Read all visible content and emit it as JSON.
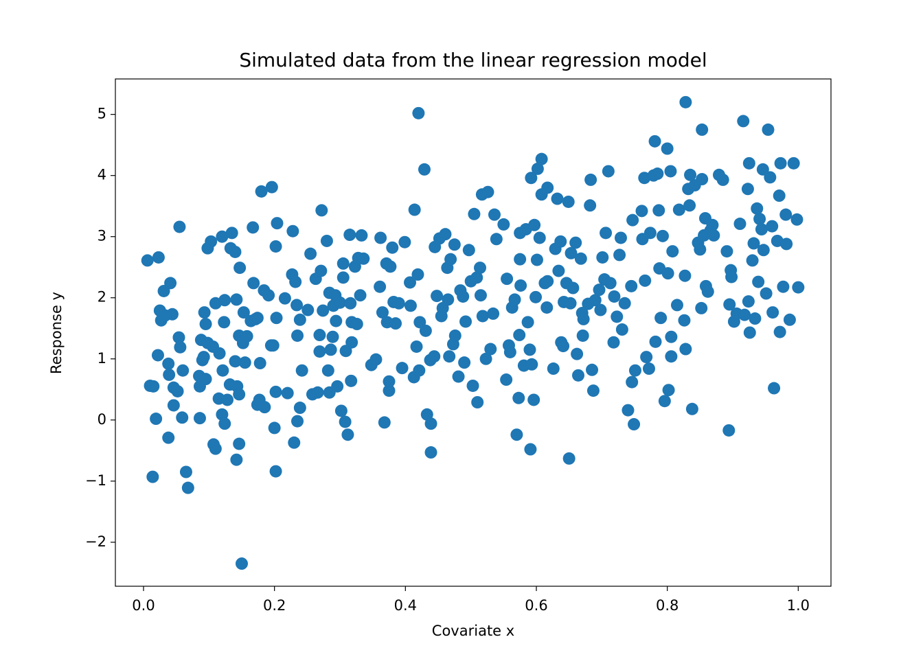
{
  "chart_data": {
    "type": "scatter",
    "title": "Simulated data from the linear regression model",
    "x_label": "Covariate x",
    "y_label": "Response y",
    "color": "#1f77b4",
    "xlim": [
      -0.043,
      1.05
    ],
    "ylim": [
      -2.72,
      5.58
    ],
    "xticks": [
      {
        "value": 0,
        "label": "0.0"
      },
      {
        "value": 0.2,
        "label": "0.2"
      },
      {
        "value": 0.4,
        "label": "0.4"
      },
      {
        "value": 0.6,
        "label": "0.6"
      },
      {
        "value": 0.8,
        "label": "0.8"
      },
      {
        "value": 1,
        "label": "1.0"
      }
    ],
    "yticks": [
      {
        "value": -2,
        "label": "−2"
      },
      {
        "value": -1,
        "label": "−1"
      },
      0,
      1,
      2,
      3,
      4,
      5
    ],
    "x": [
      0.006,
      0.023,
      0.01,
      0.015,
      0.014,
      0.019,
      0.022,
      0.025,
      0.031,
      0.041,
      0.027,
      0.033,
      0.044,
      0.038,
      0.039,
      0.038,
      0.046,
      0.046,
      0.052,
      0.055,
      0.054,
      0.056,
      0.059,
      0.06,
      0.065,
      0.068,
      0.085,
      0.086,
      0.086,
      0.088,
      0.09,
      0.093,
      0.098,
      0.103,
      0.095,
      0.098,
      0.092,
      0.095,
      0.106,
      0.11,
      0.107,
      0.11,
      0.116,
      0.115,
      0.123,
      0.124,
      0.12,
      0.121,
      0.12,
      0.124,
      0.128,
      0.133,
      0.135,
      0.132,
      0.14,
      0.142,
      0.14,
      0.142,
      0.146,
      0.146,
      0.143,
      0.146,
      0.147,
      0.15,
      0.152,
      0.153,
      0.155,
      0.158,
      0.164,
      0.167,
      0.168,
      0.171,
      0.174,
      0.174,
      0.177,
      0.18,
      0.178,
      0.185,
      0.184,
      0.191,
      0.196,
      0.195,
      0.198,
      0.2,
      0.202,
      0.203,
      0.202,
      0.202,
      0.204,
      0.216,
      0.22,
      0.228,
      0.227,
      0.23,
      0.232,
      0.234,
      0.235,
      0.235,
      0.239,
      0.242,
      0.239,
      0.251,
      0.255,
      0.258,
      0.263,
      0.266,
      0.269,
      0.271,
      0.272,
      0.269,
      0.274,
      0.28,
      0.282,
      0.284,
      0.286,
      0.284,
      0.289,
      0.29,
      0.294,
      0.296,
      0.293,
      0.3,
      0.302,
      0.305,
      0.305,
      0.308,
      0.309,
      0.312,
      0.315,
      0.316,
      0.317,
      0.318,
      0.318,
      0.323,
      0.326,
      0.328,
      0.331,
      0.333,
      0.336,
      0.348,
      0.355,
      0.362,
      0.361,
      0.365,
      0.368,
      0.371,
      0.372,
      0.375,
      0.375,
      0.377,
      0.38,
      0.382,
      0.385,
      0.39,
      0.395,
      0.399,
      0.407,
      0.408,
      0.413,
      0.414,
      0.417,
      0.419,
      0.42,
      0.422,
      0.421,
      0.429,
      0.431,
      0.433,
      0.439,
      0.439,
      0.438,
      0.444,
      0.445,
      0.448,
      0.452,
      0.455,
      0.457,
      0.461,
      0.464,
      0.465,
      0.467,
      0.469,
      0.473,
      0.475,
      0.476,
      0.481,
      0.484,
      0.488,
      0.49,
      0.492,
      0.497,
      0.5,
      0.503,
      0.505,
      0.509,
      0.51,
      0.514,
      0.515,
      0.518,
      0.517,
      0.523,
      0.526,
      0.53,
      0.534,
      0.536,
      0.539,
      0.55,
      0.554,
      0.555,
      0.558,
      0.56,
      0.563,
      0.567,
      0.57,
      0.573,
      0.575,
      0.574,
      0.575,
      0.576,
      0.581,
      0.584,
      0.587,
      0.59,
      0.591,
      0.592,
      0.593,
      0.596,
      0.597,
      0.599,
      0.601,
      0.602,
      0.605,
      0.608,
      0.608,
      0.613,
      0.616,
      0.617,
      0.617,
      0.626,
      0.629,
      0.632,
      0.634,
      0.637,
      0.638,
      0.641,
      0.642,
      0.646,
      0.649,
      0.65,
      0.652,
      0.653,
      0.656,
      0.66,
      0.662,
      0.664,
      0.668,
      0.67,
      0.671,
      0.672,
      0.679,
      0.682,
      0.683,
      0.685,
      0.687,
      0.69,
      0.696,
      0.698,
      0.701,
      0.704,
      0.706,
      0.71,
      0.713,
      0.718,
      0.719,
      0.723,
      0.727,
      0.729,
      0.731,
      0.735,
      0.74,
      0.745,
      0.746,
      0.747,
      0.749,
      0.751,
      0.761,
      0.762,
      0.765,
      0.766,
      0.768,
      0.772,
      0.774,
      0.779,
      0.781,
      0.782,
      0.785,
      0.787,
      0.788,
      0.79,
      0.793,
      0.796,
      0.8,
      0.801,
      0.802,
      0.805,
      0.806,
      0.806,
      0.808,
      0.815,
      0.818,
      0.826,
      0.827,
      0.828,
      0.828,
      0.832,
      0.834,
      0.835,
      0.838,
      0.842,
      0.847,
      0.85,
      0.852,
      0.853,
      0.853,
      0.856,
      0.858,
      0.859,
      0.862,
      0.866,
      0.869,
      0.871,
      0.879,
      0.885,
      0.891,
      0.894,
      0.895,
      0.897,
      0.898,
      0.902,
      0.906,
      0.911,
      0.916,
      0.918,
      0.923,
      0.924,
      0.926,
      0.925,
      0.93,
      0.932,
      0.934,
      0.937,
      0.939,
      0.941,
      0.944,
      0.946,
      0.947,
      0.951,
      0.954,
      0.957,
      0.96,
      0.961,
      0.963,
      0.968,
      0.971,
      0.972,
      0.973,
      0.977,
      0.981,
      0.982,
      0.987,
      0.993,
      0.998,
      1.0
    ],
    "values": [
      2.61,
      2.66,
      0.56,
      0.55,
      -0.93,
      0.02,
      1.06,
      1.79,
      2.11,
      2.24,
      1.63,
      1.71,
      1.73,
      0.92,
      0.74,
      -0.29,
      0.24,
      0.53,
      0.47,
      3.16,
      1.35,
      1.19,
      0.04,
      0.81,
      -0.85,
      -1.11,
      0.72,
      0.55,
      0.03,
      1.31,
      0.98,
      1.76,
      2.81,
      2.92,
      1.57,
      1.26,
      1.03,
      0.67,
      1.2,
      1.91,
      -0.4,
      -0.47,
      1.09,
      0.35,
      1.6,
      1.96,
      3.0,
      0.81,
      0.09,
      -0.06,
      0.33,
      2.81,
      3.06,
      0.58,
      2.75,
      1.97,
      0.96,
      -0.65,
      -0.39,
      1.38,
      0.55,
      0.42,
      2.49,
      -2.35,
      1.26,
      1.76,
      0.94,
      1.37,
      1.62,
      3.15,
      2.24,
      1.65,
      1.67,
      0.25,
      0.33,
      3.74,
      0.93,
      0.21,
      2.12,
      2.04,
      3.81,
      1.22,
      1.22,
      -0.13,
      2.84,
      1.67,
      0.46,
      -0.84,
      3.22,
      1.99,
      0.44,
      3.09,
      2.38,
      -0.37,
      2.26,
      1.88,
      1.38,
      -0.02,
      0.2,
      0.81,
      1.64,
      1.8,
      2.72,
      0.42,
      2.31,
      0.45,
      1.39,
      2.44,
      3.43,
      1.12,
      1.79,
      2.93,
      0.81,
      2.08,
      1.15,
      0.45,
      1.36,
      1.87,
      1.62,
      0.55,
      2.04,
      1.92,
      0.15,
      2.33,
      2.56,
      -0.03,
      1.13,
      -0.24,
      3.03,
      1.91,
      0.64,
      1.6,
      1.27,
      2.51,
      1.57,
      2.65,
      2.04,
      3.02,
      2.64,
      0.9,
      0.99,
      2.98,
      2.18,
      1.76,
      -0.04,
      2.56,
      1.6,
      0.63,
      0.48,
      2.51,
      2.82,
      1.93,
      1.58,
      1.91,
      0.85,
      2.91,
      2.25,
      1.87,
      0.7,
      3.44,
      1.2,
      2.38,
      5.02,
      1.6,
      0.81,
      4.1,
      1.46,
      0.09,
      -0.06,
      -0.53,
      0.98,
      1.04,
      2.83,
      2.03,
      2.97,
      1.7,
      1.83,
      3.04,
      2.49,
      1.97,
      1.04,
      2.63,
      1.24,
      2.87,
      1.38,
      0.71,
      2.12,
      2.02,
      0.94,
      1.61,
      2.78,
      2.27,
      0.56,
      3.37,
      2.33,
      0.29,
      2.49,
      2.04,
      1.7,
      3.69,
      1.0,
      3.73,
      1.16,
      1.74,
      3.36,
      2.96,
      3.2,
      0.66,
      2.31,
      1.22,
      1.11,
      1.84,
      1.97,
      -0.24,
      0.36,
      3.06,
      1.39,
      2.63,
      2.2,
      0.89,
      3.12,
      1.6,
      1.15,
      -0.48,
      3.96,
      0.91,
      0.33,
      3.19,
      2.01,
      2.62,
      4.11,
      2.98,
      4.27,
      3.69,
      2.24,
      1.84,
      3.8,
      2.27,
      0.84,
      2.8,
      3.62,
      2.44,
      2.92,
      1.27,
      1.21,
      1.93,
      2.24,
      3.57,
      -0.63,
      1.91,
      2.73,
      2.16,
      2.9,
      1.08,
      0.73,
      2.64,
      1.75,
      1.38,
      1.65,
      1.9,
      3.51,
      3.93,
      0.82,
      0.48,
      1.96,
      2.13,
      1.8,
      2.66,
      2.3,
      3.06,
      4.07,
      2.24,
      1.27,
      2.02,
      1.69,
      2.7,
      2.98,
      1.48,
      1.91,
      0.16,
      2.19,
      0.62,
      3.27,
      -0.07,
      0.81,
      3.42,
      2.96,
      3.96,
      2.28,
      1.03,
      0.84,
      3.06,
      4.0,
      4.56,
      1.28,
      4.03,
      3.43,
      2.48,
      1.67,
      3.01,
      0.31,
      4.44,
      2.4,
      0.49,
      4.07,
      1.04,
      1.36,
      2.76,
      1.88,
      3.44,
      1.63,
      2.36,
      5.2,
      1.16,
      3.78,
      3.51,
      4.01,
      0.18,
      3.84,
      2.9,
      2.79,
      1.83,
      4.75,
      3.94,
      3.02,
      3.3,
      2.19,
      2.1,
      3.1,
      3.19,
      3.02,
      4.01,
      3.93,
      2.76,
      -0.17,
      1.89,
      2.45,
      2.34,
      1.61,
      1.74,
      3.21,
      4.89,
      1.72,
      3.78,
      1.94,
      1.43,
      4.2,
      2.61,
      2.89,
      1.66,
      3.46,
      2.26,
      3.29,
      3.12,
      4.1,
      2.78,
      2.07,
      4.75,
      3.97,
      3.17,
      1.76,
      0.52,
      2.93,
      3.67,
      1.44,
      4.2,
      2.18,
      3.36,
      2.88,
      1.64,
      4.2,
      3.28,
      2.17
    ]
  }
}
